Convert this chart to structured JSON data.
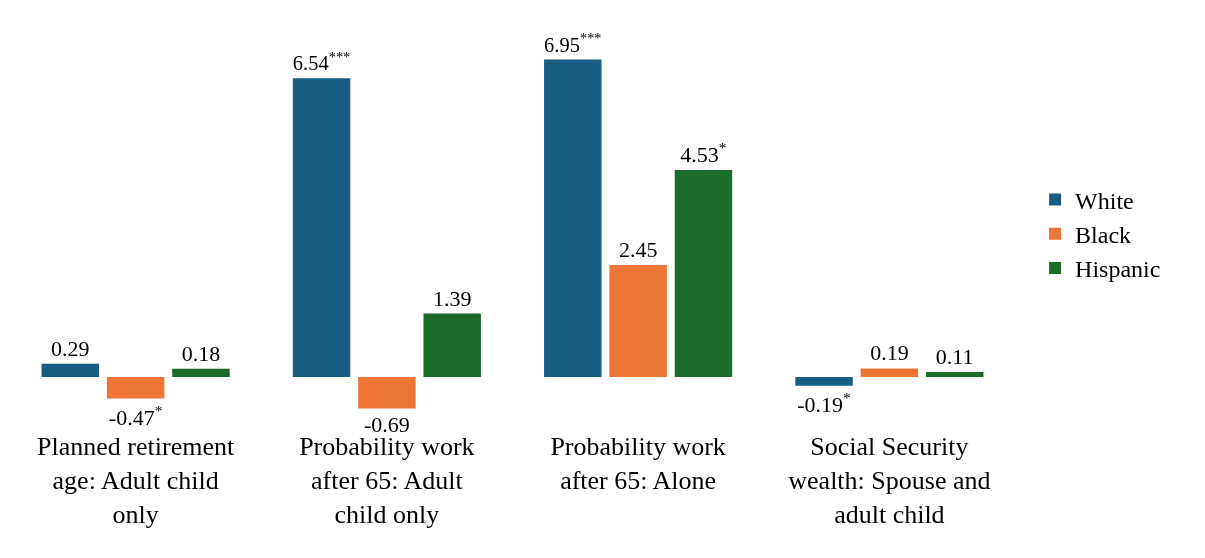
{
  "chart_data": {
    "type": "bar",
    "categories": [
      "Planned retirement age: Adult child only",
      "Probability work after 65: Adult child only",
      "Probability work after 65: Alone",
      "Social Security wealth: Spouse and adult child"
    ],
    "series": [
      {
        "name": "White",
        "color": "#175e82",
        "values": [
          0.29,
          6.54,
          6.95,
          -0.19
        ],
        "value_labels": [
          "0.29",
          "6.54$^{***}$",
          "6.95$^{***}$",
          "-0.19$^{*}$"
        ]
      },
      {
        "name": "Black",
        "color": "#ed7636",
        "values": [
          -0.47,
          -0.69,
          2.45,
          0.19
        ],
        "value_labels": [
          "-0.47$^{*}$",
          "-0.69",
          "2.45",
          "0.19"
        ]
      },
      {
        "name": "Hispanic",
        "color": "#1d6b28",
        "values": [
          0.18,
          1.39,
          4.53,
          0.11
        ],
        "value_labels": [
          "0.18",
          "1.39",
          "4.53$^{*}$",
          "0.11"
        ]
      }
    ],
    "legend": "right"
  }
}
